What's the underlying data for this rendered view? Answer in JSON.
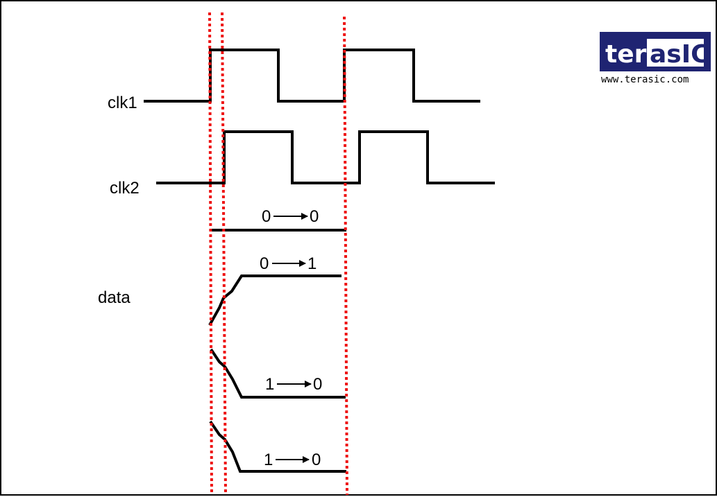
{
  "colors": {
    "signal": "#000000",
    "marker": "#ee1111",
    "logo_navy": "#1f2472",
    "logo_text": "#ffffff"
  },
  "signals": {
    "clk1": "clk1",
    "clk2": "clk2",
    "data": "data"
  },
  "transitions": [
    {
      "from": "0",
      "to": "0"
    },
    {
      "from": "0",
      "to": "1"
    },
    {
      "from": "1",
      "to": "0"
    },
    {
      "from": "1",
      "to": "0"
    }
  ],
  "logo": {
    "part1": "ter",
    "part2": "asIC",
    "url": "www.terasic.com"
  }
}
